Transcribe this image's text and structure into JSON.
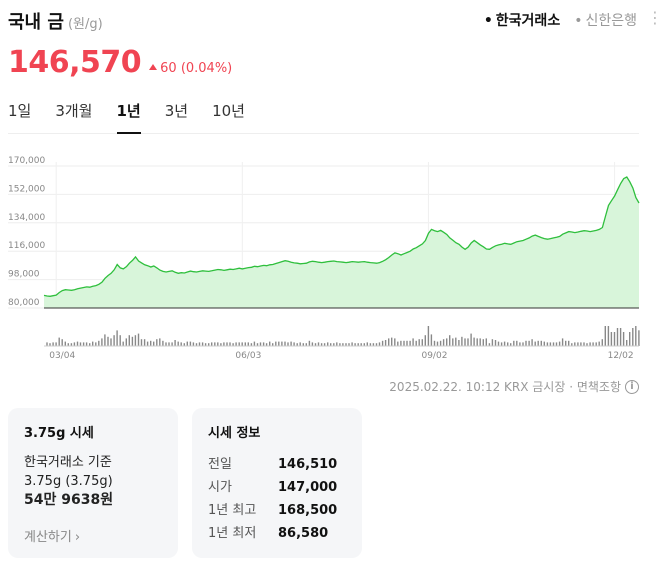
{
  "header": {
    "title": "국내 금",
    "unit": "(원/g)",
    "source_tabs": [
      {
        "label": "한국거래소",
        "active": true
      },
      {
        "label": "신한은행",
        "active": false
      }
    ],
    "more_icon": "more-vertical-icon"
  },
  "price": {
    "value": "146,570",
    "change": "60 (0.04%)",
    "color": "#f04452"
  },
  "period_tabs": [
    {
      "label": "1일",
      "active": false
    },
    {
      "label": "3개월",
      "active": false
    },
    {
      "label": "1년",
      "active": true
    },
    {
      "label": "3년",
      "active": false
    },
    {
      "label": "10년",
      "active": false
    }
  ],
  "chart_data": {
    "type": "area",
    "y_ticks": [
      "170,000",
      "152,000",
      "134,000",
      "116,000",
      "98,000",
      "80,000"
    ],
    "y_tick_values": [
      170000,
      152000,
      134000,
      116000,
      98000,
      80000
    ],
    "ylim": [
      80000,
      170000
    ],
    "x_ticks": [
      "03/04",
      "06/03",
      "09/02",
      "12/02"
    ],
    "x_tick_index": [
      4,
      65,
      126,
      187
    ],
    "line_color": "#2fbf3d",
    "fill_color": "#d8f5da",
    "values": [
      88000,
      87600,
      87400,
      87800,
      88200,
      89800,
      91000,
      91600,
      91400,
      91200,
      91600,
      92200,
      92600,
      93000,
      93400,
      93200,
      93800,
      94200,
      95000,
      96400,
      98800,
      100600,
      102000,
      104200,
      107600,
      105400,
      104800,
      106200,
      108400,
      110200,
      112400,
      109800,
      108600,
      107400,
      106800,
      106000,
      106600,
      105400,
      104000,
      103200,
      102800,
      103200,
      103600,
      102600,
      102000,
      102400,
      102200,
      102800,
      103400,
      103000,
      102800,
      103200,
      103600,
      103400,
      103200,
      103600,
      104000,
      104400,
      104200,
      103800,
      104200,
      104600,
      104400,
      104800,
      105200,
      104800,
      105200,
      105600,
      105800,
      106400,
      106200,
      106600,
      107000,
      106800,
      107400,
      107600,
      108200,
      108800,
      109400,
      110000,
      109600,
      109000,
      108600,
      108400,
      108000,
      108200,
      108400,
      109200,
      109600,
      109400,
      109000,
      108800,
      109000,
      109400,
      109600,
      109800,
      109400,
      109200,
      109000,
      108800,
      109000,
      109400,
      109200,
      109000,
      109200,
      109400,
      109000,
      108800,
      108600,
      108400,
      108800,
      109600,
      110600,
      112000,
      113600,
      115000,
      114400,
      113600,
      114400,
      115200,
      116000,
      117400,
      118200,
      119400,
      120600,
      122800,
      127400,
      129800,
      129000,
      128400,
      129200,
      128000,
      126600,
      124400,
      123000,
      121400,
      120400,
      118600,
      117200,
      118600,
      121200,
      122800,
      121400,
      120000,
      118800,
      117400,
      117200,
      118400,
      119400,
      120000,
      120400,
      121000,
      120600,
      120400,
      121200,
      122000,
      122400,
      122800,
      123600,
      124400,
      125600,
      126200,
      125400,
      124600,
      124000,
      123600,
      124000,
      124400,
      124800,
      125400,
      126800,
      127600,
      128400,
      128200,
      127800,
      128200,
      128600,
      129000,
      128800,
      128400,
      128800,
      129200,
      129800,
      131000,
      138000,
      145000,
      148000,
      151000,
      155000,
      159000,
      162000,
      163000,
      160000,
      156000,
      150000,
      146570
    ],
    "volume_color": "#888888"
  },
  "footer": {
    "timestamp": "2025.02.22. 10:12 KRX 금시장 · 면책조항",
    "info_icon": "info-circle-icon"
  },
  "card_left": {
    "title": "3.75g 시세",
    "basis": "한국거래소 기준",
    "weight": "3.75g (3.75g)",
    "amount": "54만 9638원",
    "calc_link": "계산하기",
    "chevron_icon": "chevron-right-icon"
  },
  "card_right": {
    "title": "시세 정보",
    "rows": [
      {
        "label": "전일",
        "value": "146,510"
      },
      {
        "label": "시가",
        "value": "147,000"
      },
      {
        "label": "1년 최고",
        "value": "168,500"
      },
      {
        "label": "1년 최저",
        "value": "86,580"
      }
    ]
  }
}
